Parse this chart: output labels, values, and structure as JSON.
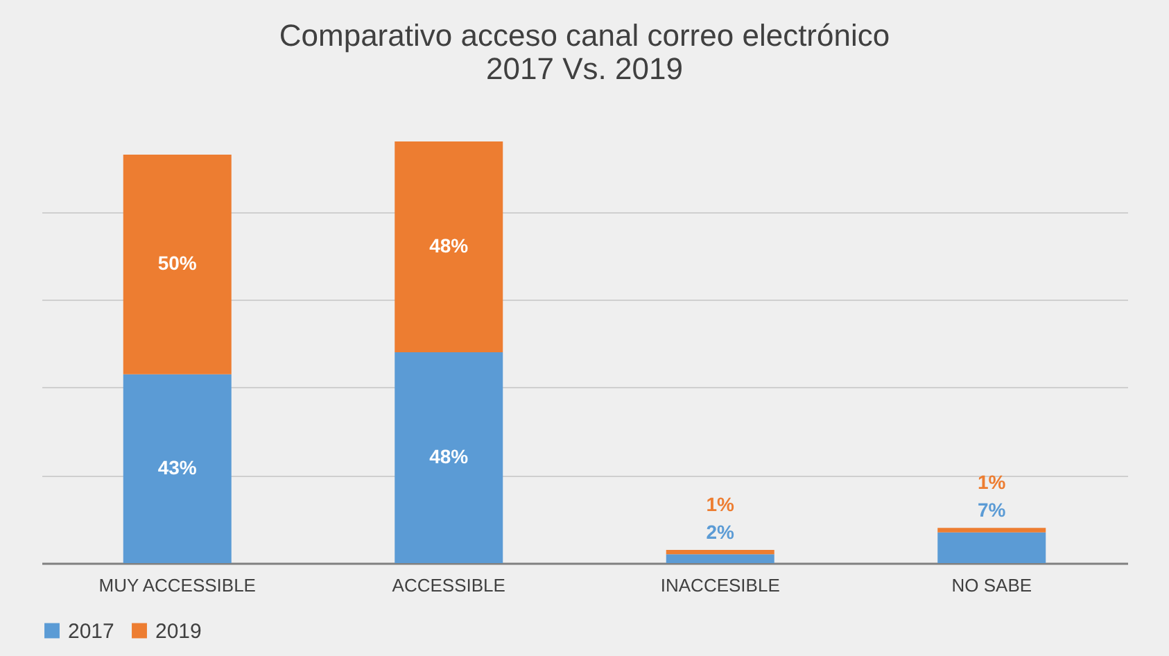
{
  "chart_data": {
    "type": "bar",
    "title": "Comparativo acceso canal correo electrónico\n2017 Vs. 2019",
    "categories": [
      "MUY ACCESSIBLE",
      "ACCESSIBLE",
      "INACCESIBLE",
      "NO SABE"
    ],
    "stacked": true,
    "grid": "y",
    "legend": "bottom",
    "data_labels": true,
    "series": [
      {
        "name": "2017",
        "color": "#5b9bd5",
        "values": [
          43,
          48,
          2,
          7
        ],
        "value_labels": [
          "43%",
          "48%",
          "2%",
          "7%"
        ]
      },
      {
        "name": "2019",
        "color": "#ed7d31",
        "values": [
          50,
          48,
          1,
          1
        ],
        "value_labels": [
          "50%",
          "48%",
          "1%",
          "1%"
        ]
      }
    ]
  }
}
